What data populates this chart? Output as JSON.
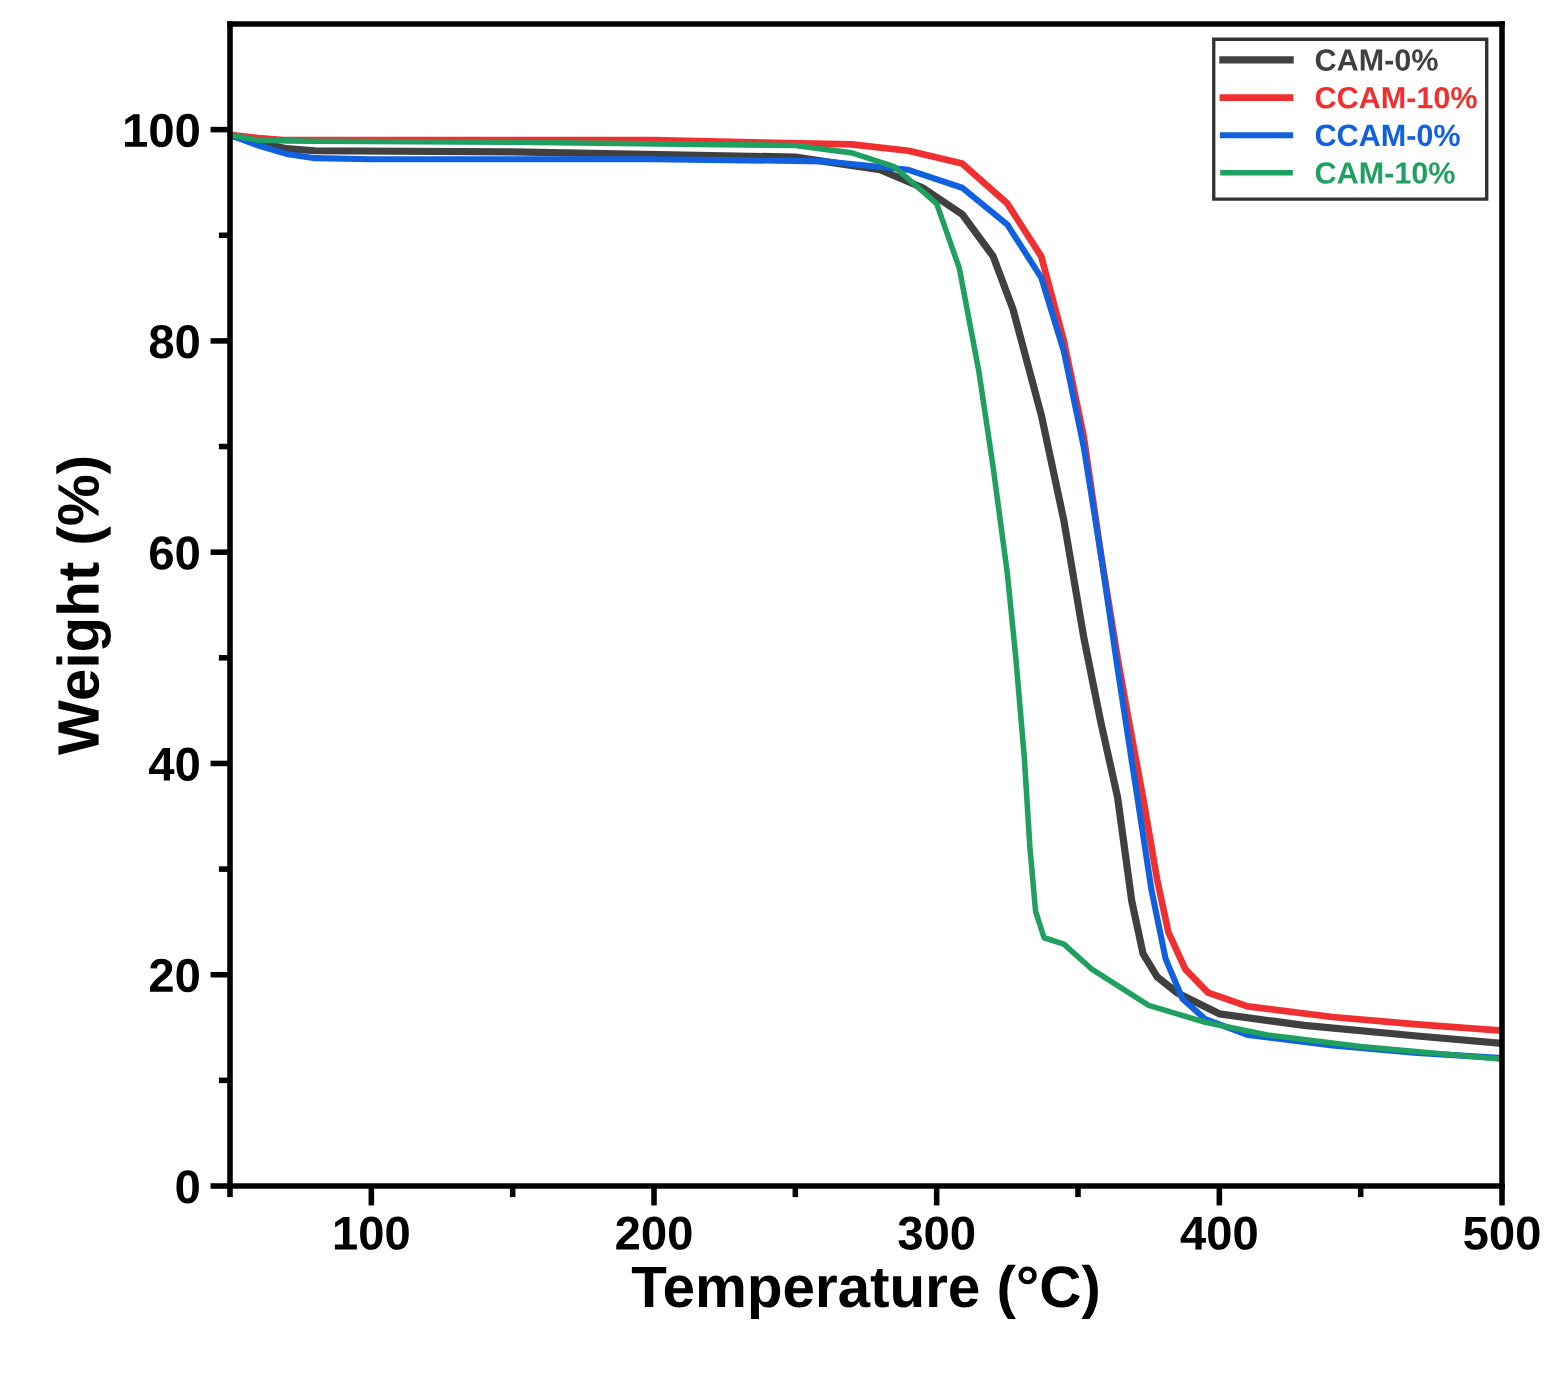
{
  "chart_data": {
    "type": "line",
    "xlabel": "Temperature (°C)",
    "ylabel": "Weight (%)",
    "xlim": [
      50,
      500
    ],
    "ylim": [
      0,
      110
    ],
    "xticks": [
      {
        "value": 50,
        "label": null
      },
      100,
      {
        "value": 150,
        "label": null
      },
      200,
      {
        "value": 250,
        "label": null
      },
      300,
      {
        "value": 350,
        "label": null
      },
      400,
      {
        "value": 450,
        "label": null
      },
      500
    ],
    "yticks": [
      0,
      {
        "value": 10,
        "label": null
      },
      20,
      {
        "value": 30,
        "label": null
      },
      40,
      {
        "value": 50,
        "label": null
      },
      60,
      {
        "value": 70,
        "label": null
      },
      80,
      {
        "value": 90,
        "label": null
      },
      100
    ],
    "grid": false,
    "legend": "top right",
    "marker": "none",
    "line_style": "solid",
    "series": [
      {
        "name": "CAM-0%",
        "color": "#404040",
        "x": [
          50,
          60,
          70,
          80,
          150,
          250,
          280,
          295,
          309,
          320,
          327,
          337,
          345,
          352,
          358,
          364,
          369,
          373,
          378,
          385,
          400,
          430,
          470,
          500
        ],
        "values": [
          99.5,
          98.8,
          98.2,
          98.0,
          97.9,
          97.4,
          96.2,
          94.5,
          92.0,
          88.0,
          83.0,
          73.0,
          63.0,
          52.0,
          44.0,
          36.8,
          27.0,
          22.0,
          19.8,
          18.3,
          16.3,
          15.2,
          14.2,
          13.5
        ]
      },
      {
        "name": "CCAM-10%",
        "color": "#f03030",
        "x": [
          50,
          60,
          70,
          100,
          200,
          270,
          290,
          309,
          325,
          337,
          345,
          352,
          358,
          364,
          368,
          373,
          378,
          382,
          388,
          396,
          410,
          440,
          470,
          500
        ],
        "values": [
          99.5,
          99.2,
          99.0,
          99.0,
          99.0,
          98.6,
          98.0,
          96.8,
          93.0,
          88.0,
          80.0,
          71.0,
          60.0,
          50.0,
          44.0,
          36.8,
          29.0,
          24.0,
          20.5,
          18.3,
          17.0,
          16.0,
          15.3,
          14.7
        ]
      },
      {
        "name": "CCAM-0%",
        "color": "#1060e0",
        "x": [
          50,
          60,
          70,
          80,
          100,
          200,
          260,
          290,
          309,
          325,
          337,
          345,
          352,
          358,
          364,
          368,
          371,
          376,
          381,
          387,
          395,
          410,
          440,
          470,
          500
        ],
        "values": [
          99.5,
          98.5,
          97.7,
          97.3,
          97.2,
          97.2,
          97.0,
          96.2,
          94.5,
          91.0,
          86.0,
          79.0,
          70.0,
          60.0,
          49.0,
          42.0,
          36.8,
          28.0,
          21.5,
          17.7,
          15.8,
          14.3,
          13.3,
          12.6,
          12.1
        ]
      },
      {
        "name": "CAM-10%",
        "color": "#20a060",
        "x": [
          50,
          60,
          80,
          150,
          250,
          270,
          285,
          300,
          308,
          315,
          320,
          325,
          328,
          331,
          333,
          335,
          338,
          345,
          355,
          375,
          395,
          417,
          450,
          500
        ],
        "values": [
          99.5,
          99.0,
          98.9,
          98.8,
          98.5,
          97.8,
          96.5,
          93.0,
          86.9,
          77.0,
          68.0,
          58.0,
          50.0,
          40.6,
          32.0,
          26.0,
          23.5,
          22.9,
          20.5,
          17.1,
          15.5,
          14.3,
          13.2,
          12.0
        ]
      }
    ]
  }
}
